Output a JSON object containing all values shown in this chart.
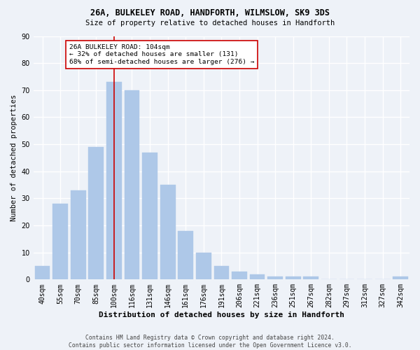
{
  "title1": "26A, BULKELEY ROAD, HANDFORTH, WILMSLOW, SK9 3DS",
  "title2": "Size of property relative to detached houses in Handforth",
  "xlabel": "Distribution of detached houses by size in Handforth",
  "ylabel": "Number of detached properties",
  "categories": [
    "40sqm",
    "55sqm",
    "70sqm",
    "85sqm",
    "100sqm",
    "116sqm",
    "131sqm",
    "146sqm",
    "161sqm",
    "176sqm",
    "191sqm",
    "206sqm",
    "221sqm",
    "236sqm",
    "251sqm",
    "267sqm",
    "282sqm",
    "297sqm",
    "312sqm",
    "327sqm",
    "342sqm"
  ],
  "values": [
    5,
    28,
    33,
    49,
    73,
    70,
    47,
    35,
    18,
    10,
    5,
    3,
    2,
    1,
    1,
    1,
    0,
    0,
    0,
    0,
    1
  ],
  "bar_color": "#aec8e8",
  "bar_edgecolor": "#aec8e8",
  "vline_x_index": 4,
  "vline_color": "#cc0000",
  "annotation_line1": "26A BULKELEY ROAD: 104sqm",
  "annotation_line2": "← 32% of detached houses are smaller (131)",
  "annotation_line3": "68% of semi-detached houses are larger (276) →",
  "annotation_box_color": "#ffffff",
  "annotation_box_edgecolor": "#cc0000",
  "footnote1": "Contains HM Land Registry data © Crown copyright and database right 2024.",
  "footnote2": "Contains public sector information licensed under the Open Government Licence v3.0.",
  "ylim": [
    0,
    90
  ],
  "yticks": [
    0,
    10,
    20,
    30,
    40,
    50,
    60,
    70,
    80,
    90
  ],
  "bg_color": "#eef2f8",
  "grid_color": "#ffffff"
}
